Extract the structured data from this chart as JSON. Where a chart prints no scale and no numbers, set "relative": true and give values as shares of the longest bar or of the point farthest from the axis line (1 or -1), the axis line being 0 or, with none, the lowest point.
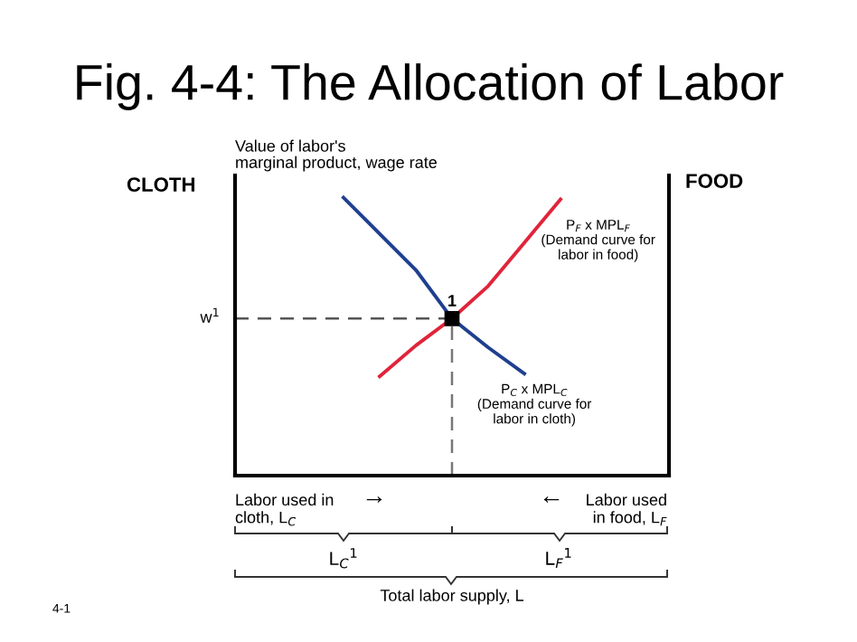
{
  "chart_data": {
    "type": "line",
    "relative": true,
    "title": "Fig. 4-4: The Allocation of Labor",
    "ylabel": "Value of labor's\nmarginal product, wage rate",
    "grid": false,
    "legend": false,
    "line_style": "solid",
    "marker": "none",
    "categories": [
      null,
      null,
      null,
      null,
      null,
      null,
      null
    ],
    "series": [
      {
        "name": "P$_{C}$ x MPL$_{C}$\n(Demand curve for\nlabor in cloth)",
        "color": "#1f3f8f",
        "values": [
          1.0,
          0.87,
          0.74,
          0.565,
          0.461,
          0.367,
          null
        ]
      },
      {
        "name": "P$_{F}$ x MPL$_{F}$\n(Demand curve for\nlabor in food)",
        "color": "#e0243a",
        "values": [
          null,
          0.357,
          0.468,
          0.565,
          0.682,
          0.838,
          0.994
        ]
      }
    ],
    "ref_lines": [
      {
        "axis": "y",
        "value": 0.565,
        "label": "w$^{1}$",
        "color": "#555555",
        "line_style": "dashed"
      }
    ],
    "annotations": [
      "1",
      "CLOTH",
      "FOOD",
      "Labor used in\ncloth, L$_{C}$",
      "→",
      "←",
      "Labor used\nin food, L$_{F}$",
      "L$_{C}$$^{1}$",
      "L$_{F}$$^{1}$",
      "Total labor supply, L",
      "4-1"
    ]
  }
}
